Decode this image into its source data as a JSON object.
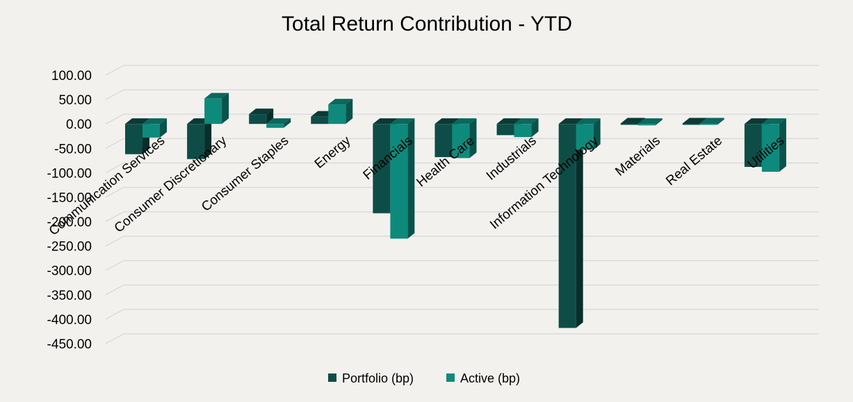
{
  "chart_data": {
    "type": "bar",
    "title": "Total Return Contribution - YTD",
    "xlabel": "",
    "ylabel": "",
    "ylim": [
      -450,
      100
    ],
    "ytick_step": 50,
    "ytick_labels": [
      "100.00",
      "50.00",
      "0.00",
      "-50.00",
      "-100.00",
      "-150.00",
      "-200.00",
      "-250.00",
      "-300.00",
      "-350.00",
      "-400.00",
      "-450.00"
    ],
    "grid": true,
    "legend": "bottom-center",
    "categories": [
      "Communication Services",
      "Consumer Discretionary",
      "Consumer Staples",
      "Energy",
      "Financials",
      "Health Care",
      "Industrials",
      "Information Technology",
      "Materials",
      "Real Estate",
      "Utilities"
    ],
    "series": [
      {
        "name": "Portfolio (bp)",
        "color": "#0e4d47",
        "values": [
          -62,
          -72,
          20,
          15,
          -183,
          -68,
          -23,
          -418,
          1,
          1,
          -88
        ]
      },
      {
        "name": "Active (bp)",
        "color": "#0e8a7c",
        "values": [
          -28,
          52,
          -8,
          40,
          -235,
          -70,
          -27,
          -53,
          -3,
          1,
          -98
        ]
      }
    ]
  }
}
